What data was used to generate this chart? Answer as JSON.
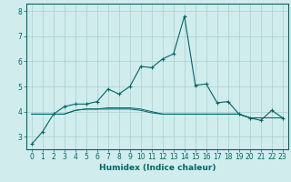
{
  "xlabel": "Humidex (Indice chaleur)",
  "x": [
    0,
    1,
    2,
    3,
    4,
    5,
    6,
    7,
    8,
    9,
    10,
    11,
    12,
    13,
    14,
    15,
    16,
    17,
    18,
    19,
    20,
    21,
    22,
    23
  ],
  "y_main": [
    2.7,
    3.2,
    3.9,
    4.2,
    4.3,
    4.3,
    4.4,
    4.9,
    4.7,
    5.0,
    5.8,
    5.75,
    6.1,
    6.3,
    7.8,
    5.05,
    5.1,
    4.35,
    4.4,
    3.9,
    3.75,
    3.65,
    4.05,
    3.75
  ],
  "y_flat1": [
    3.9,
    3.9,
    3.9,
    3.9,
    4.05,
    4.1,
    4.1,
    4.1,
    4.1,
    4.1,
    4.05,
    3.95,
    3.9,
    3.9,
    3.9,
    3.9,
    3.9,
    3.9,
    3.9,
    3.9,
    3.75,
    3.75,
    3.75,
    3.75
  ],
  "y_flat2": [
    3.9,
    3.9,
    3.9,
    3.9,
    4.05,
    4.1,
    4.1,
    4.15,
    4.15,
    4.15,
    4.1,
    4.0,
    3.9,
    3.9,
    3.9,
    3.9,
    3.9,
    3.9,
    3.9,
    3.9,
    3.75,
    3.75,
    3.75,
    3.75
  ],
  "line_color": "#006666",
  "bg_color": "#d0ecec",
  "grid_color": "#a8cece",
  "ylim": [
    2.5,
    8.3
  ],
  "yticks": [
    3,
    4,
    5,
    6,
    7,
    8
  ],
  "xlim": [
    -0.5,
    23.5
  ],
  "tick_fontsize": 5.5,
  "xlabel_fontsize": 6.5
}
